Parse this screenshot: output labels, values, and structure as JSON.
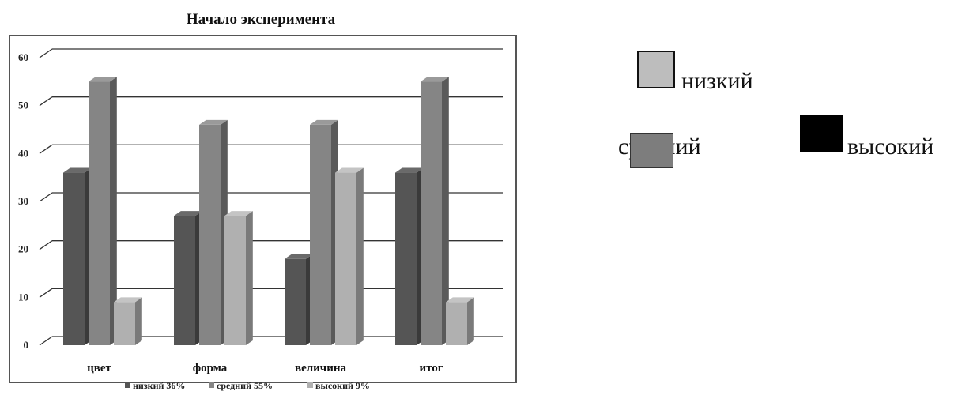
{
  "chart_data": {
    "type": "bar",
    "title": "Начало эксперимента",
    "categories": [
      "цвет",
      "форма",
      "величина",
      "итог"
    ],
    "series": [
      {
        "name": "низкий 36%",
        "values": [
          36,
          27,
          18,
          36
        ],
        "color": "#555555"
      },
      {
        "name": "средний 55%",
        "values": [
          55,
          46,
          46,
          55
        ],
        "color": "#858585"
      },
      {
        "name": "высокий 9%",
        "values": [
          9,
          27,
          36,
          9
        ],
        "color": "#b0b0b0"
      }
    ],
    "yticks": [
      0,
      10,
      20,
      30,
      40,
      50,
      60
    ],
    "ylim": [
      0,
      60
    ],
    "grid": true,
    "legend_position": "bottom",
    "xlabel": "",
    "ylabel": ""
  },
  "side_legend": {
    "items": [
      {
        "label": "низкий",
        "color": "#bdbdbd"
      },
      {
        "label": "средний",
        "color": "#7d7d7d"
      },
      {
        "label": "высокий",
        "color": "#000000"
      }
    ]
  }
}
